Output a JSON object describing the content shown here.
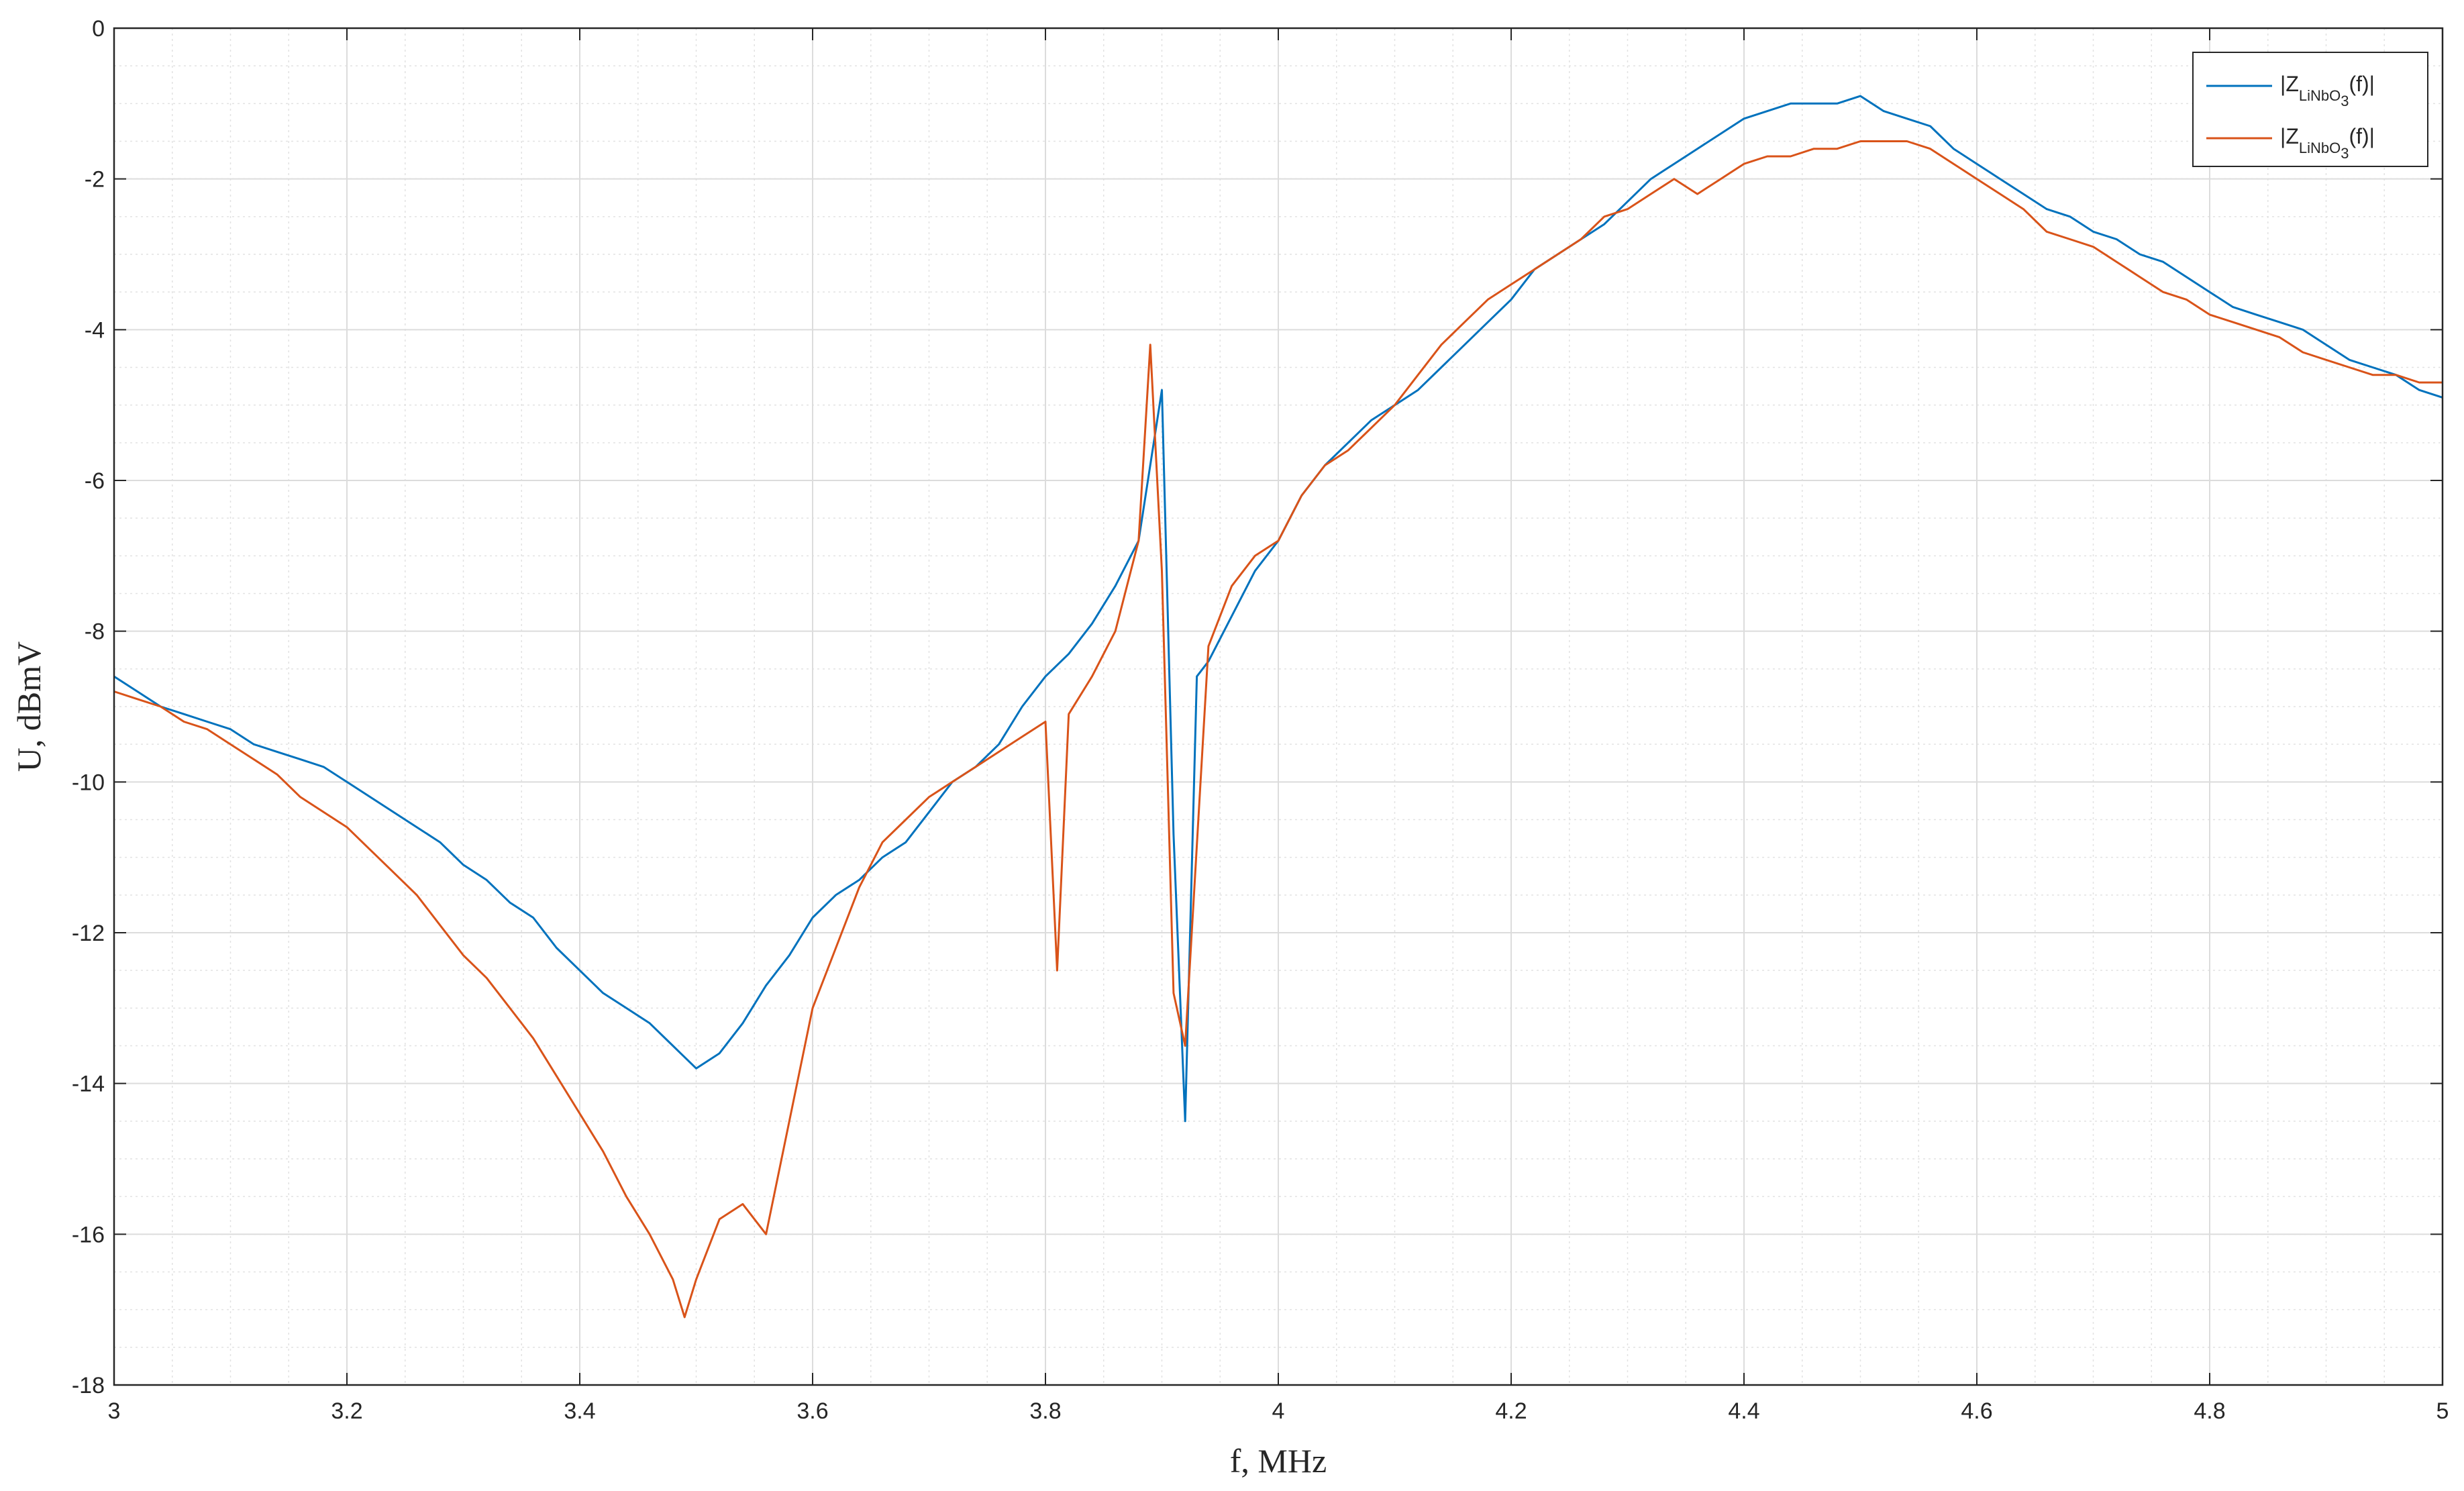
{
  "chart_data": {
    "type": "line",
    "title": "",
    "xlabel": "f, MHz",
    "ylabel": "U, dBmV",
    "xlim": [
      3,
      5
    ],
    "ylim": [
      -18,
      0
    ],
    "xticks": [
      "3",
      "3.2",
      "3.4",
      "3.6",
      "3.8",
      "4",
      "4.2",
      "4.4",
      "4.6",
      "4.8",
      "5"
    ],
    "yticks": [
      "0",
      "-2",
      "-4",
      "-6",
      "-8",
      "-10",
      "-12",
      "-14",
      "-16",
      "-18"
    ],
    "grid": true,
    "minor_grid": true,
    "legend_position": "top-right",
    "colors": {
      "series1": "#0072BD",
      "series2": "#D95319"
    },
    "series": [
      {
        "name": "|Z_LiNbO3(f)|",
        "legend": {
          "pre": "|Z",
          "sub": "LiNbO",
          "subsub": "3",
          "post": "(f)|"
        },
        "color": "#0072BD",
        "x": [
          3.0,
          3.02,
          3.04,
          3.06,
          3.08,
          3.1,
          3.12,
          3.14,
          3.16,
          3.18,
          3.2,
          3.22,
          3.24,
          3.26,
          3.28,
          3.3,
          3.32,
          3.34,
          3.36,
          3.38,
          3.4,
          3.42,
          3.44,
          3.46,
          3.48,
          3.5,
          3.52,
          3.54,
          3.56,
          3.58,
          3.6,
          3.62,
          3.64,
          3.66,
          3.68,
          3.7,
          3.72,
          3.74,
          3.76,
          3.78,
          3.8,
          3.82,
          3.84,
          3.86,
          3.88,
          3.9,
          3.91,
          3.92,
          3.93,
          3.94,
          3.96,
          3.98,
          4.0,
          4.02,
          4.04,
          4.06,
          4.08,
          4.1,
          4.12,
          4.14,
          4.16,
          4.18,
          4.2,
          4.22,
          4.24,
          4.26,
          4.28,
          4.3,
          4.32,
          4.34,
          4.36,
          4.38,
          4.4,
          4.42,
          4.44,
          4.46,
          4.48,
          4.5,
          4.52,
          4.54,
          4.56,
          4.58,
          4.6,
          4.62,
          4.64,
          4.66,
          4.68,
          4.7,
          4.72,
          4.74,
          4.76,
          4.78,
          4.8,
          4.82,
          4.84,
          4.86,
          4.88,
          4.9,
          4.92,
          4.94,
          4.96,
          4.98,
          5.0
        ],
        "y": [
          -8.6,
          -8.8,
          -9.0,
          -9.1,
          -9.2,
          -9.3,
          -9.5,
          -9.6,
          -9.7,
          -9.8,
          -10.0,
          -10.2,
          -10.4,
          -10.6,
          -10.8,
          -11.1,
          -11.3,
          -11.6,
          -11.8,
          -12.2,
          -12.5,
          -12.8,
          -13.0,
          -13.2,
          -13.5,
          -13.8,
          -13.6,
          -13.2,
          -12.7,
          -12.3,
          -11.8,
          -11.5,
          -11.3,
          -11.0,
          -10.8,
          -10.4,
          -10.0,
          -9.8,
          -9.5,
          -9.0,
          -8.6,
          -8.3,
          -7.9,
          -7.4,
          -6.8,
          -4.8,
          -10.7,
          -14.5,
          -8.6,
          -8.4,
          -7.8,
          -7.2,
          -6.8,
          -6.2,
          -5.8,
          -5.5,
          -5.2,
          -5.0,
          -4.8,
          -4.5,
          -4.2,
          -3.9,
          -3.6,
          -3.2,
          -3.0,
          -2.8,
          -2.6,
          -2.3,
          -2.0,
          -1.8,
          -1.6,
          -1.4,
          -1.2,
          -1.1,
          -1.0,
          -1.0,
          -1.0,
          -0.9,
          -1.1,
          -1.2,
          -1.3,
          -1.6,
          -1.8,
          -2.0,
          -2.2,
          -2.4,
          -2.5,
          -2.7,
          -2.8,
          -3.0,
          -3.1,
          -3.3,
          -3.5,
          -3.7,
          -3.8,
          -3.9,
          -4.0,
          -4.2,
          -4.4,
          -4.5,
          -4.6,
          -4.8,
          -4.9
        ]
      },
      {
        "name": "|Z_LiNbO3(f)|",
        "legend": {
          "pre": "|Z",
          "sub": "LiNbO",
          "subsub": "3",
          "post": "(f)|"
        },
        "color": "#D95319",
        "x": [
          3.0,
          3.02,
          3.04,
          3.06,
          3.08,
          3.1,
          3.12,
          3.14,
          3.16,
          3.18,
          3.2,
          3.22,
          3.24,
          3.26,
          3.28,
          3.3,
          3.32,
          3.34,
          3.36,
          3.38,
          3.4,
          3.42,
          3.44,
          3.46,
          3.48,
          3.49,
          3.5,
          3.52,
          3.54,
          3.56,
          3.58,
          3.6,
          3.62,
          3.64,
          3.66,
          3.68,
          3.7,
          3.72,
          3.74,
          3.76,
          3.78,
          3.8,
          3.81,
          3.82,
          3.84,
          3.86,
          3.88,
          3.89,
          3.9,
          3.91,
          3.92,
          3.94,
          3.96,
          3.98,
          4.0,
          4.02,
          4.04,
          4.06,
          4.08,
          4.1,
          4.12,
          4.14,
          4.16,
          4.18,
          4.2,
          4.22,
          4.24,
          4.26,
          4.28,
          4.3,
          4.32,
          4.34,
          4.36,
          4.38,
          4.4,
          4.42,
          4.44,
          4.46,
          4.48,
          4.5,
          4.52,
          4.54,
          4.56,
          4.58,
          4.6,
          4.62,
          4.64,
          4.66,
          4.68,
          4.7,
          4.72,
          4.74,
          4.76,
          4.78,
          4.8,
          4.82,
          4.84,
          4.86,
          4.88,
          4.9,
          4.92,
          4.94,
          4.96,
          4.98,
          5.0
        ],
        "y": [
          -8.8,
          -8.9,
          -9.0,
          -9.2,
          -9.3,
          -9.5,
          -9.7,
          -9.9,
          -10.2,
          -10.4,
          -10.6,
          -10.9,
          -11.2,
          -11.5,
          -11.9,
          -12.3,
          -12.6,
          -13.0,
          -13.4,
          -13.9,
          -14.4,
          -14.9,
          -15.5,
          -16.0,
          -16.6,
          -17.1,
          -16.6,
          -15.8,
          -15.6,
          -16.0,
          -14.5,
          -13.0,
          -12.2,
          -11.4,
          -10.8,
          -10.5,
          -10.2,
          -10.0,
          -9.8,
          -9.6,
          -9.4,
          -9.2,
          -12.5,
          -9.1,
          -8.6,
          -8.0,
          -6.8,
          -4.2,
          -7.2,
          -12.8,
          -13.5,
          -8.2,
          -7.4,
          -7.0,
          -6.8,
          -6.2,
          -5.8,
          -5.6,
          -5.3,
          -5.0,
          -4.6,
          -4.2,
          -3.9,
          -3.6,
          -3.4,
          -3.2,
          -3.0,
          -2.8,
          -2.5,
          -2.4,
          -2.2,
          -2.0,
          -2.2,
          -2.0,
          -1.8,
          -1.7,
          -1.7,
          -1.6,
          -1.6,
          -1.5,
          -1.5,
          -1.5,
          -1.6,
          -1.8,
          -2.0,
          -2.2,
          -2.4,
          -2.7,
          -2.8,
          -2.9,
          -3.1,
          -3.3,
          -3.5,
          -3.6,
          -3.8,
          -3.9,
          -4.0,
          -4.1,
          -4.3,
          -4.4,
          -4.5,
          -4.6,
          -4.6,
          -4.7,
          -4.7
        ]
      }
    ]
  }
}
